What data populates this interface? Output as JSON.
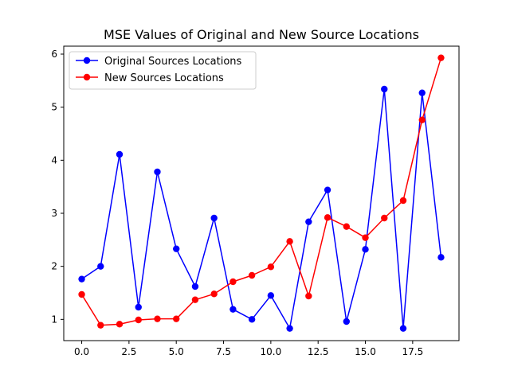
{
  "chart_data": {
    "type": "line",
    "title": "MSE Values of Original and New Source Locations",
    "xlabel": "",
    "ylabel": "",
    "xlim": [
      -0.95,
      19.95
    ],
    "ylim": [
      0.6,
      6.15
    ],
    "x_ticks": [
      0.0,
      2.5,
      5.0,
      7.5,
      10.0,
      12.5,
      15.0,
      17.5
    ],
    "x_tick_labels": [
      "0.0",
      "2.5",
      "5.0",
      "7.5",
      "10.0",
      "12.5",
      "15.0",
      "17.5"
    ],
    "y_ticks": [
      1,
      2,
      3,
      4,
      5,
      6
    ],
    "y_tick_labels": [
      "1",
      "2",
      "3",
      "4",
      "5",
      "6"
    ],
    "grid": false,
    "legend_position": "top-left",
    "x": [
      0,
      1,
      2,
      3,
      4,
      5,
      6,
      7,
      8,
      9,
      10,
      11,
      12,
      13,
      14,
      15,
      16,
      17,
      18,
      19
    ],
    "series": [
      {
        "name": "Original Sources Locations",
        "color": "#0000ff",
        "marker": "circle",
        "values": [
          1.76,
          2.0,
          4.11,
          1.23,
          3.78,
          2.33,
          1.62,
          2.91,
          1.19,
          1.0,
          1.45,
          0.83,
          2.84,
          3.44,
          0.96,
          2.32,
          5.34,
          0.83,
          5.27,
          2.17
        ]
      },
      {
        "name": "New Sources Locations",
        "color": "#ff0000",
        "marker": "circle",
        "values": [
          1.47,
          0.89,
          0.91,
          0.99,
          1.01,
          1.01,
          1.37,
          1.48,
          1.71,
          1.83,
          1.99,
          2.47,
          1.44,
          2.92,
          2.75,
          2.54,
          2.91,
          3.24,
          4.76,
          5.93
        ]
      }
    ]
  }
}
